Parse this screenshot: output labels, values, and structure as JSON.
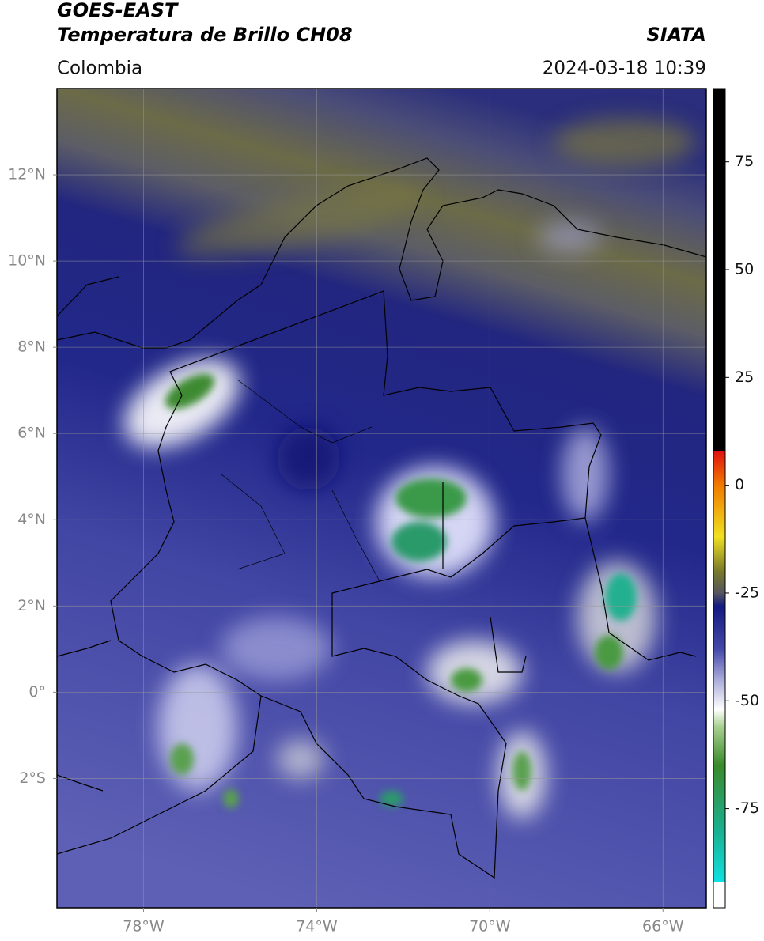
{
  "header": {
    "title": "GOES-EAST",
    "subtitle": "Temperatura de Brillo CH08",
    "source": "SIATA",
    "region": "Colombia",
    "datetime": "2024-03-18 10:39"
  },
  "map": {
    "lonlim": [
      -80,
      -65
    ],
    "latlim": [
      -5,
      14
    ],
    "xticks": [
      {
        "value": -78,
        "label": "78°W"
      },
      {
        "value": -74,
        "label": "74°W"
      },
      {
        "value": -70,
        "label": "70°W"
      },
      {
        "value": -66,
        "label": "66°W"
      }
    ],
    "yticks": [
      {
        "value": 12,
        "label": "12°N"
      },
      {
        "value": 10,
        "label": "10°N"
      },
      {
        "value": 8,
        "label": "8°N"
      },
      {
        "value": 6,
        "label": "6°N"
      },
      {
        "value": 4,
        "label": "4°N"
      },
      {
        "value": 2,
        "label": "2°N"
      },
      {
        "value": 0,
        "label": "0°"
      },
      {
        "value": -2,
        "label": "2°S"
      }
    ],
    "grid": true
  },
  "colorbar": {
    "lim": [
      -98,
      92
    ],
    "ticks": [
      75,
      50,
      25,
      0,
      -25,
      -50,
      -75
    ]
  }
}
